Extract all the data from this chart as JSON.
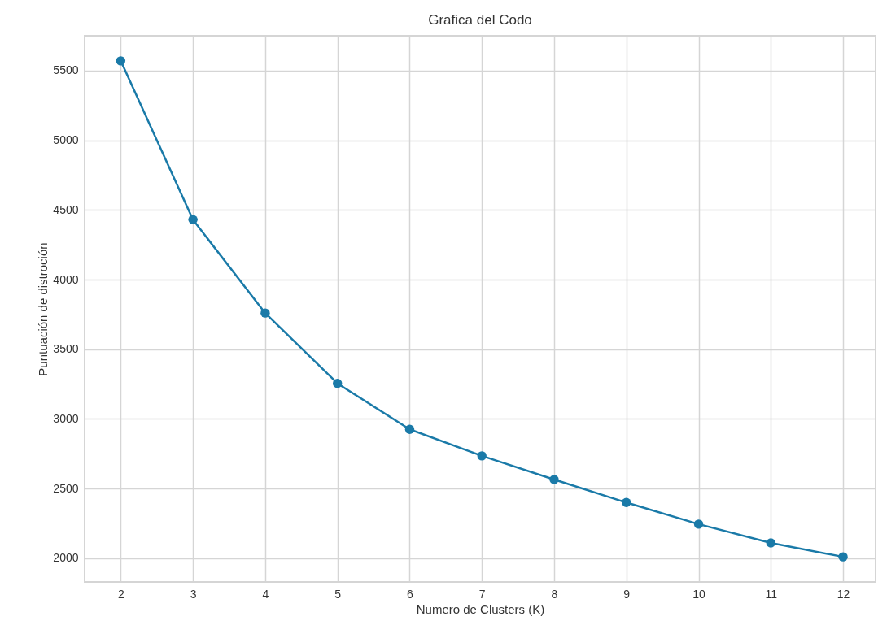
{
  "chart_data": {
    "type": "line",
    "title": "Grafica del Codo",
    "xlabel": "Numero de Clusters (K)",
    "ylabel": "Puntuación de distroción",
    "x": [
      2,
      3,
      4,
      5,
      6,
      7,
      8,
      9,
      10,
      11,
      12
    ],
    "series": [
      {
        "color": "#1a7aa8",
        "values": [
          5570,
          4430,
          3760,
          3255,
          2925,
          2735,
          2565,
          2400,
          2245,
          2110,
          2010
        ]
      }
    ],
    "xlim": [
      1.5,
      12.45
    ],
    "xticks": [
      2,
      3,
      4,
      5,
      6,
      7,
      8,
      9,
      10,
      11,
      12
    ],
    "ylim": [
      1830,
      5750
    ],
    "yticks": [
      2000,
      2500,
      3000,
      3500,
      4000,
      4500,
      5000,
      5500
    ],
    "grid": true,
    "marker": "circle",
    "line_style": "solid"
  }
}
